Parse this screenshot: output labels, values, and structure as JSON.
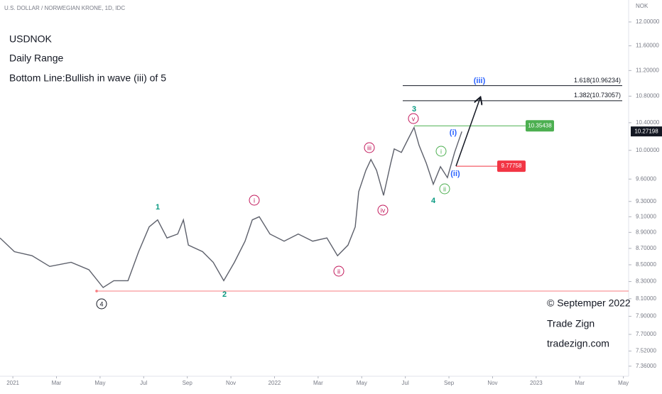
{
  "chart_data": {
    "type": "line",
    "title": "U.S. DOLLAR / NORWEGIAN KRONE, 1D, IDC",
    "y_axis_label": "NOK",
    "texts": [
      "USDNOK",
      "Daily Range",
      "Bottom Line:Bullish in wave (iii) of 5"
    ],
    "credits": [
      "© Septemper 2022",
      "Trade Zign",
      "tradezign.com"
    ],
    "log_scale": true,
    "xlim": [
      -0.59,
      28.24
    ],
    "ylim": [
      7.27,
      12.38
    ],
    "xticks": [
      {
        "value": 0,
        "label": "2021"
      },
      {
        "value": 2,
        "label": "Mar"
      },
      {
        "value": 4,
        "label": "May"
      },
      {
        "value": 6,
        "label": "Jul"
      },
      {
        "value": 8,
        "label": "Sep"
      },
      {
        "value": 10,
        "label": "Nov"
      },
      {
        "value": 12,
        "label": "2022"
      },
      {
        "value": 14,
        "label": "Mar"
      },
      {
        "value": 16,
        "label": "May"
      },
      {
        "value": 18,
        "label": "Jul"
      },
      {
        "value": 20,
        "label": "Sep"
      },
      {
        "value": 22,
        "label": "Nov"
      },
      {
        "value": 24,
        "label": "2023"
      },
      {
        "value": 26,
        "label": "Mar"
      },
      {
        "value": 28,
        "label": "May"
      }
    ],
    "yticks": [
      {
        "value": 12,
        "label": "12.00000"
      },
      {
        "value": 11.6,
        "label": "11.60000"
      },
      {
        "value": 11.2,
        "label": "11.20000"
      },
      {
        "value": 10.8,
        "label": "10.80000"
      },
      {
        "value": 10.4,
        "label": "10.40000"
      },
      {
        "value": 10,
        "label": "10.00000"
      },
      {
        "value": 9.6,
        "label": "9.60000"
      },
      {
        "value": 9.3,
        "label": "9.30000"
      },
      {
        "value": 9.1,
        "label": "9.10000"
      },
      {
        "value": 8.9,
        "label": "8.90000"
      },
      {
        "value": 8.7,
        "label": "8.70000"
      },
      {
        "value": 8.5,
        "label": "8.50000"
      },
      {
        "value": 8.3,
        "label": "8.30000"
      },
      {
        "value": 8.1,
        "label": "8.10000"
      },
      {
        "value": 7.9,
        "label": "7.90000"
      },
      {
        "value": 7.7,
        "label": "7.70000"
      },
      {
        "value": 7.52,
        "label": "7.52000"
      },
      {
        "value": 7.36,
        "label": "7.36000"
      }
    ],
    "x": [
      -0.59,
      0.07,
      0.88,
      1.69,
      2.67,
      3.49,
      4.14,
      4.63,
      5.28,
      5.77,
      6.25,
      6.64,
      7.07,
      7.56,
      7.82,
      8.05,
      8.7,
      9.19,
      9.67,
      10.16,
      10.65,
      10.98,
      11.3,
      11.79,
      12.44,
      13.09,
      13.75,
      14.4,
      14.89,
      15.37,
      15.7,
      15.86,
      16.19,
      16.42,
      16.68,
      17.0,
      17.33,
      17.49,
      17.82,
      18.14,
      18.4,
      18.63,
      18.96,
      19.28,
      19.61,
      19.93,
      20.26,
      20.59
    ],
    "series": [
      {
        "name": "USDNOK",
        "color": "#5d606b",
        "values": [
          8.83,
          8.66,
          8.61,
          8.48,
          8.53,
          8.44,
          8.23,
          8.31,
          8.31,
          8.66,
          8.97,
          9.06,
          8.83,
          8.88,
          9.06,
          8.74,
          8.66,
          8.53,
          8.31,
          8.53,
          8.79,
          9.06,
          9.1,
          8.88,
          8.79,
          8.88,
          8.79,
          8.83,
          8.61,
          8.74,
          8.97,
          9.43,
          9.72,
          9.87,
          9.72,
          9.38,
          9.82,
          10.02,
          9.97,
          10.17,
          10.33,
          10.07,
          9.82,
          9.53,
          9.77,
          9.62,
          9.97,
          10.27
        ]
      }
    ],
    "levels": [
      {
        "label": "1.618(10.96234)",
        "value": 10.96234,
        "color": "#131722"
      },
      {
        "label": "1.382(10.73057)",
        "value": 10.73057,
        "color": "#131722"
      },
      {
        "label": "10.35438",
        "value": 10.35438,
        "color": "#4caf50"
      },
      {
        "label": "9.77758",
        "value": 9.77758,
        "color": "#f23645"
      },
      {
        "label": "10.27198",
        "value": 10.27198,
        "color": "#131722"
      }
    ],
    "support_color": "#f77c80",
    "waves": [
      {
        "text": "1",
        "color": "#089981"
      },
      {
        "text": "2",
        "color": "#089981"
      },
      {
        "text": "3",
        "color": "#089981"
      },
      {
        "text": "4",
        "color": "#089981"
      },
      {
        "text": "4",
        "color": "#131722",
        "circle": true
      },
      {
        "text": "i",
        "color": "#c2185b",
        "circle": true
      },
      {
        "text": "ii",
        "color": "#c2185b",
        "circle": true
      },
      {
        "text": "iii",
        "color": "#c2185b",
        "circle": true
      },
      {
        "text": "iv",
        "color": "#c2185b",
        "circle": true
      },
      {
        "text": "v",
        "color": "#c2185b",
        "circle": true
      },
      {
        "text": "i",
        "color": "#4caf50",
        "circle": true
      },
      {
        "text": "ii",
        "color": "#4caf50",
        "circle": true
      },
      {
        "text": "(i)",
        "color": "#2962ff"
      },
      {
        "text": "(ii)",
        "color": "#2962ff"
      },
      {
        "text": "(iii)",
        "color": "#2962ff"
      }
    ]
  }
}
